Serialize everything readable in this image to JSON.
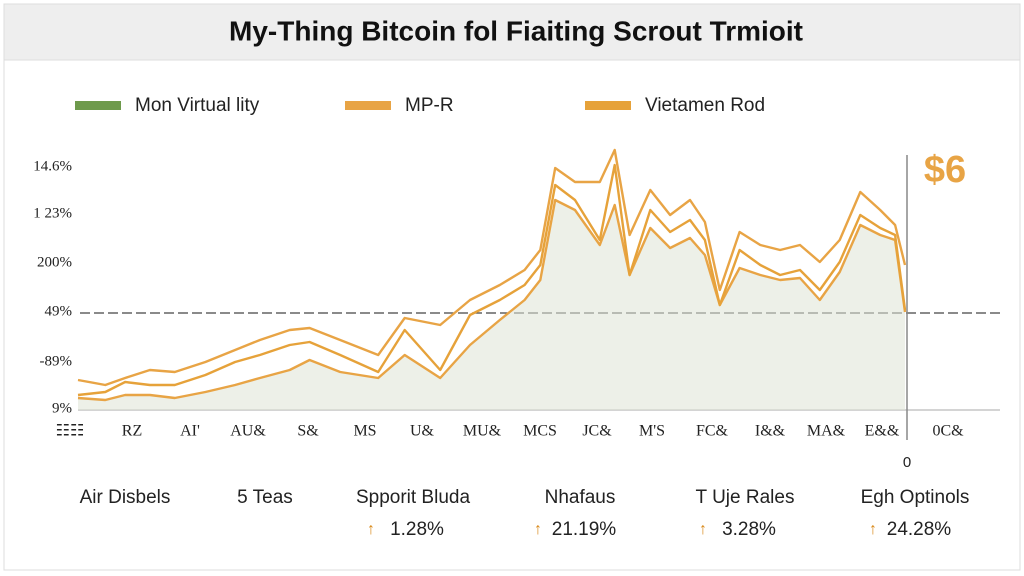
{
  "chart_data": {
    "type": "line",
    "title": "My-Thing Bitcoin fol Fiaiting Scrout Trmioit",
    "xlim": [
      0,
      100
    ],
    "ylim": [
      0,
      110
    ],
    "x": [
      0,
      3.3,
      5.7,
      8.7,
      11.7,
      15.4,
      19,
      22,
      25.6,
      28,
      31.7,
      36.3,
      39.5,
      43.8,
      47.4,
      51,
      54,
      55.9,
      57.7,
      60.1,
      63.1,
      64.9,
      66.7,
      69.2,
      71.6,
      74,
      75.8,
      77.6,
      80,
      82.5,
      84.9,
      87.3,
      89.7,
      92.1,
      94.6,
      97,
      98.8,
      100
    ],
    "series": [
      {
        "name": "Mon Virtual lity",
        "color": "#6e9a4c",
        "area": true,
        "values": [
          4.8,
          4,
          6,
          6,
          4.8,
          7.2,
          10,
          12.8,
          16,
          20,
          15.2,
          12.8,
          22,
          12.8,
          26,
          36,
          44,
          52,
          84,
          80,
          66,
          82,
          54,
          72.8,
          64.8,
          68.8,
          62,
          42,
          56.8,
          54,
          52,
          52.8,
          44,
          55.2,
          74,
          70,
          68,
          39.2
        ]
      },
      {
        "name": "MP-R",
        "color": "#e8a445",
        "values": [
          12,
          10,
          12.8,
          16,
          15.2,
          19.2,
          24,
          28,
          32,
          32.8,
          28,
          22,
          36.8,
          34,
          44,
          50,
          56,
          64,
          96.8,
          91.2,
          91.2,
          104,
          70,
          88,
          78,
          84,
          75.2,
          48,
          71.2,
          66,
          64,
          66,
          59.2,
          68,
          87.2,
          80,
          74,
          58
        ]
      },
      {
        "name": "Vietamen Rod",
        "color": "#e6a23a",
        "values": [
          6,
          7.2,
          11.2,
          10,
          10,
          14,
          19.2,
          22,
          26,
          27.2,
          22,
          15.2,
          32,
          16,
          38,
          44,
          50,
          58,
          90,
          84,
          68,
          98,
          54,
          80,
          71.2,
          76,
          68,
          42,
          64,
          58,
          54,
          56,
          48,
          59.2,
          78,
          72.8,
          70,
          40
        ]
      }
    ],
    "y_axis_labels": [
      "14.6%",
      "1 23%",
      "200%",
      "49%",
      "-89%",
      "9%"
    ],
    "x_labels": [
      "☷☷",
      "RZ",
      "AI'",
      "AU&",
      "S&",
      "MS",
      "U&",
      "MU&",
      "MCS",
      "JC&",
      "M'S",
      "FC&",
      "I&&",
      "MA&",
      "E&&",
      "0C&"
    ],
    "annotations": [
      "$6",
      "0"
    ],
    "stats": [
      {
        "label": "Air Disbels"
      },
      {
        "label": "5 Teas"
      },
      {
        "label": "Spporit Bluda",
        "value": "1.28%"
      },
      {
        "label": "Nhafaus",
        "value": "21.19%"
      },
      {
        "label": "T Uje Rales",
        "value": "3.28%"
      },
      {
        "label": "Egh Optinols",
        "value": "24.28%"
      }
    ]
  }
}
